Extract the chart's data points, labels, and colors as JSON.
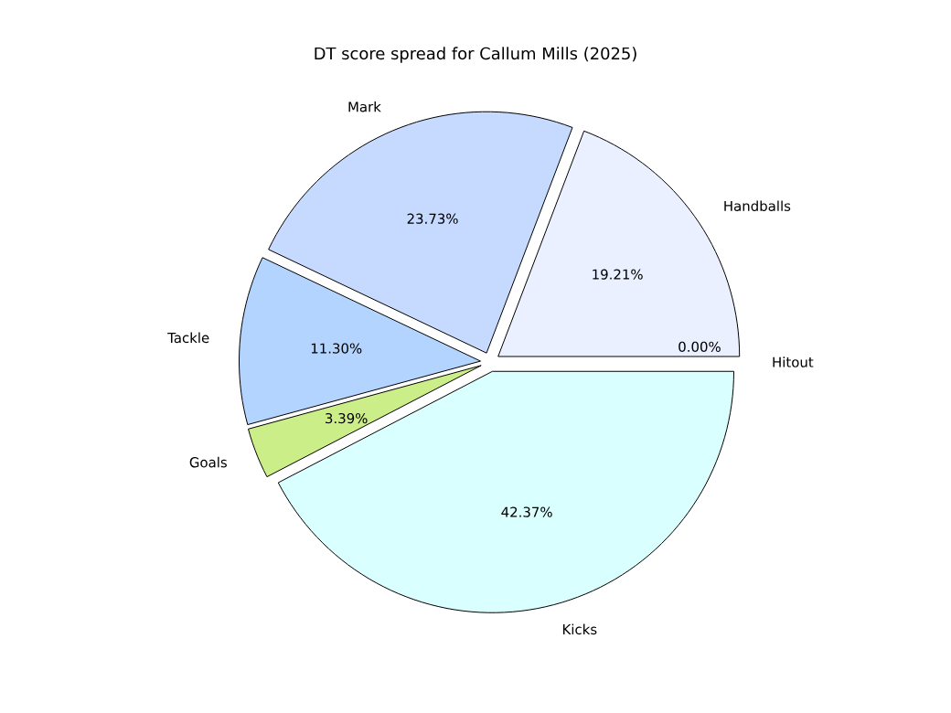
{
  "chart_data": {
    "type": "pie",
    "title": "DT score spread for Callum Mills (2025)",
    "categories": [
      "Hitout",
      "Handballs",
      "Mark",
      "Tackle",
      "Goals",
      "Kicks"
    ],
    "values": [
      0.0,
      19.21,
      23.73,
      11.3,
      3.39,
      42.37
    ],
    "value_labels": [
      "0.00%",
      "19.21%",
      "23.73%",
      "11.30%",
      "3.39%",
      "42.37%"
    ],
    "colors": [
      "#e6e6ff",
      "#eaf0ff",
      "#c6d9ff",
      "#b3d4ff",
      "#ccee88",
      "#d9ffff"
    ]
  }
}
